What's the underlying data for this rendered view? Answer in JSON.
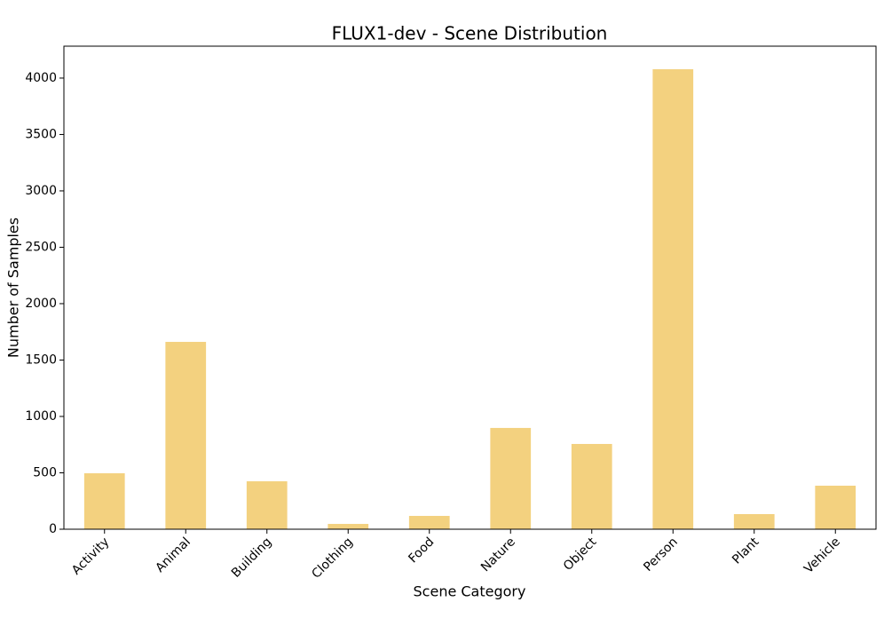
{
  "chart_data": {
    "type": "bar",
    "title": "FLUX1-dev - Scene Distribution",
    "x_label": "Scene Category",
    "y_label": "Number of Samples",
    "categories": [
      "Activity",
      "Animal",
      "Building",
      "Clothing",
      "Food",
      "Nature",
      "Object",
      "Person",
      "Plant",
      "Vehicle"
    ],
    "values": [
      496,
      1661,
      425,
      47,
      118,
      898,
      756,
      4079,
      134,
      386
    ],
    "color": "#f3d17f",
    "ylim": [
      0,
      4283
    ],
    "yticks": [
      0,
      500,
      1000,
      1500,
      2000,
      2500,
      3000,
      3500,
      4000
    ],
    "grid": false
  }
}
